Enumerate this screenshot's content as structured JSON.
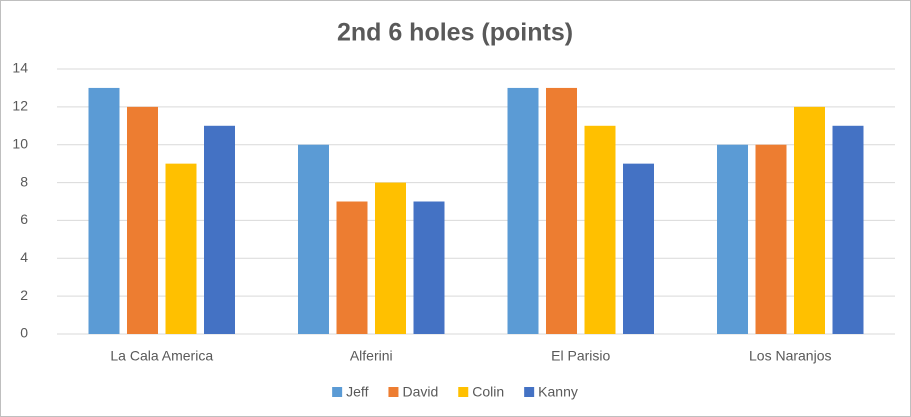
{
  "chart_data": {
    "type": "bar",
    "title": "2nd 6 holes (points)",
    "categories": [
      "La Cala America",
      "Alferini",
      "El Parisio",
      "Los Naranjos"
    ],
    "series": [
      {
        "name": "Jeff",
        "color": "#5b9bd5",
        "values": [
          13,
          10,
          13,
          10
        ]
      },
      {
        "name": "David",
        "color": "#ed7d31",
        "values": [
          12,
          7,
          13,
          10
        ]
      },
      {
        "name": "Colin",
        "color": "#ffc000",
        "values": [
          9,
          8,
          11,
          12
        ]
      },
      {
        "name": "Kanny",
        "color": "#4472c4",
        "values": [
          11,
          7,
          9,
          11
        ]
      }
    ],
    "ylim": [
      0,
      14
    ],
    "yticks": [
      0,
      2,
      4,
      6,
      8,
      10,
      12,
      14
    ],
    "grid": true,
    "legend": "bottom"
  }
}
